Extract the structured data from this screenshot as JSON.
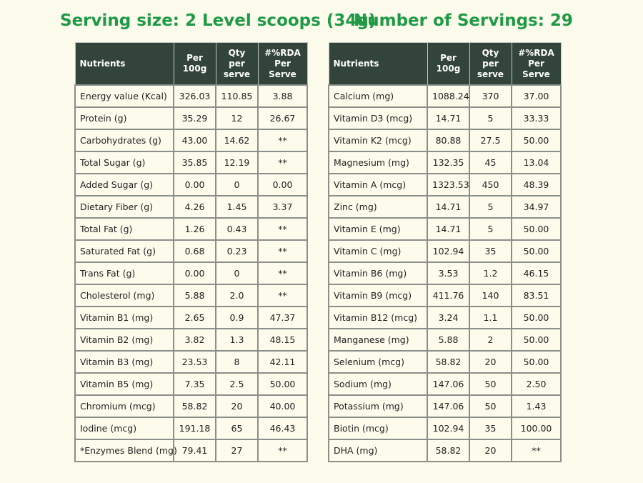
{
  "header": {
    "serving_size": "Serving size: 2 Level scoops (34g)",
    "servings": "Number of Servings: 29"
  },
  "colors": {
    "heading": "#1e9a45",
    "table_header_bg": "#33443a",
    "page_bg": "#fcfbec"
  },
  "left_table": {
    "columns": [
      "Nutrients",
      "Per 100g",
      "Qty per serve",
      "#%RDA Per Serve"
    ],
    "rows": [
      [
        "Energy value (Kcal)",
        "326.03",
        "110.85",
        "3.88"
      ],
      [
        "Protein (g)",
        "35.29",
        "12",
        "26.67"
      ],
      [
        "Carbohydrates (g)",
        "43.00",
        "14.62",
        "**"
      ],
      [
        "Total Sugar (g)",
        "35.85",
        "12.19",
        "**"
      ],
      [
        "Added Sugar (g)",
        "0.00",
        "0",
        "0.00"
      ],
      [
        "Dietary Fiber (g)",
        "4.26",
        "1.45",
        "3.37"
      ],
      [
        "Total Fat (g)",
        "1.26",
        "0.43",
        "**"
      ],
      [
        "Saturated Fat (g)",
        "0.68",
        "0.23",
        "**"
      ],
      [
        "Trans Fat (g)",
        "0.00",
        "0",
        "**"
      ],
      [
        "Cholesterol (mg)",
        "5.88",
        "2.0",
        "**"
      ],
      [
        "Vitamin B1 (mg)",
        "2.65",
        "0.9",
        "47.37"
      ],
      [
        "Vitamin B2 (mg)",
        "3.82",
        "1.3",
        "48.15"
      ],
      [
        "Vitamin B3 (mg)",
        "23.53",
        "8",
        "42.11"
      ],
      [
        "Vitamin B5 (mg)",
        "7.35",
        "2.5",
        "50.00"
      ],
      [
        "Chromium (mcg)",
        "58.82",
        "20",
        "40.00"
      ],
      [
        "Iodine (mcg)",
        "191.18",
        "65",
        "46.43"
      ],
      [
        "*Enzymes Blend (mg)",
        "79.41",
        "27",
        "**"
      ]
    ]
  },
  "right_table": {
    "columns": [
      "Nutrients",
      "Per 100g",
      "Qty per serve",
      "#%RDA Per Serve"
    ],
    "rows": [
      [
        "Calcium (mg)",
        "1088.24",
        "370",
        "37.00"
      ],
      [
        "Vitamin D3 (mcg)",
        "14.71",
        "5",
        "33.33"
      ],
      [
        "Vitamin K2 (mcg)",
        "80.88",
        "27.5",
        "50.00"
      ],
      [
        "Magnesium (mg)",
        "132.35",
        "45",
        "13.04"
      ],
      [
        "Vitamin A (mcg)",
        "1323.53",
        "450",
        "48.39"
      ],
      [
        "Zinc (mg)",
        "14.71",
        "5",
        "34.97"
      ],
      [
        "Vitamin E (mg)",
        "14.71",
        "5",
        "50.00"
      ],
      [
        "Vitamin C (mg)",
        "102.94",
        "35",
        "50.00"
      ],
      [
        "Vitamin B6 (mg)",
        "3.53",
        "1.2",
        "46.15"
      ],
      [
        "Vitamin B9 (mcg)",
        "411.76",
        "140",
        "83.51"
      ],
      [
        "Vitamin B12 (mcg)",
        "3.24",
        "1.1",
        "50.00"
      ],
      [
        "Manganese (mg)",
        "5.88",
        "2",
        "50.00"
      ],
      [
        "Selenium (mcg)",
        "58.82",
        "20",
        "50.00"
      ],
      [
        "Sodium (mg)",
        "147.06",
        "50",
        "2.50"
      ],
      [
        "Potassium (mg)",
        "147.06",
        "50",
        "1.43"
      ],
      [
        "Biotin (mcg)",
        "102.94",
        "35",
        "100.00"
      ],
      [
        "DHA (mg)",
        "58.82",
        "20",
        "**"
      ]
    ]
  }
}
